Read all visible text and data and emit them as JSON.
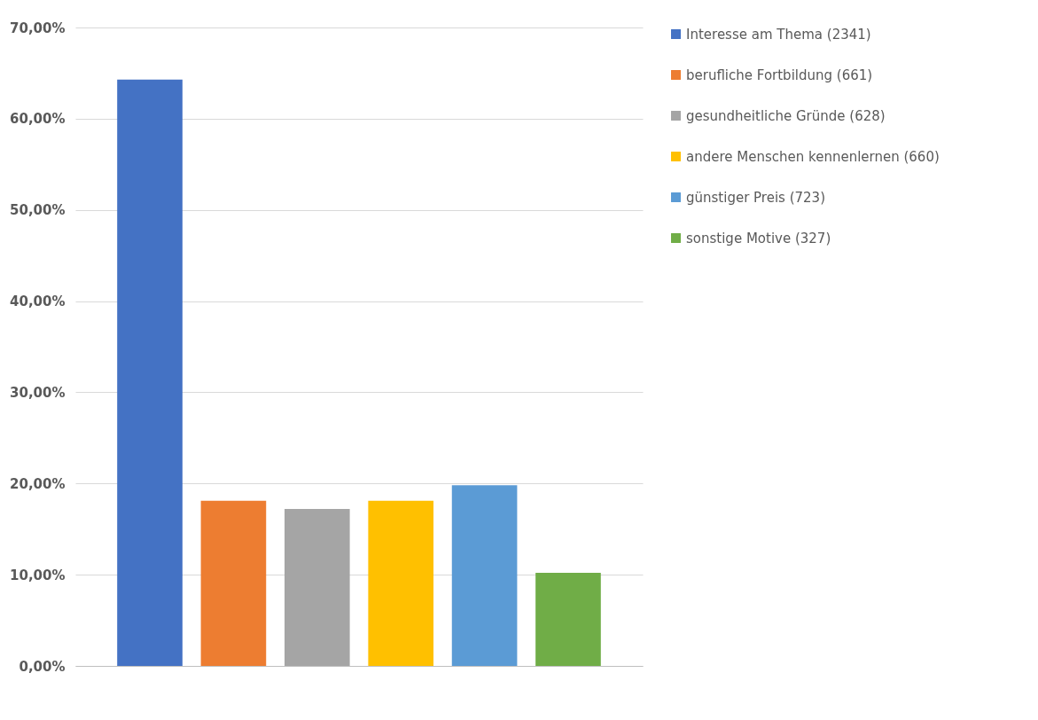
{
  "chart_data": {
    "type": "bar",
    "categories": [
      null,
      null,
      null,
      null,
      null,
      null
    ],
    "series": [
      {
        "name": "Interesse am Thema (2341)",
        "color": "#4472c4",
        "values": [
          64.3,
          null,
          null,
          null,
          null,
          null
        ]
      },
      {
        "name": "berufliche Fortbildung (661)",
        "color": "#ed7d31",
        "values": [
          null,
          18.1,
          null,
          null,
          null,
          null
        ]
      },
      {
        "name": "gesundheitliche Gründe (628)",
        "color": "#a5a5a5",
        "values": [
          null,
          null,
          17.2,
          null,
          null,
          null
        ]
      },
      {
        "name": "andere Menschen kennenlernen (660)",
        "color": "#ffc000",
        "values": [
          null,
          null,
          null,
          18.1,
          null,
          null
        ]
      },
      {
        "name": "günstiger Preis (723)",
        "color": "#5b9bd5",
        "values": [
          null,
          null,
          null,
          null,
          19.8,
          null
        ]
      },
      {
        "name": "sonstige Motive (327)",
        "color": "#70ad47",
        "values": [
          null,
          null,
          null,
          null,
          null,
          10.2
        ]
      }
    ],
    "ylim": [
      0,
      70
    ],
    "yticks": [
      {
        "value": 0,
        "label": "0,00%"
      },
      {
        "value": 10,
        "label": "10,00%"
      },
      {
        "value": 20,
        "label": "20,00%"
      },
      {
        "value": 30,
        "label": "30,00%"
      },
      {
        "value": 40,
        "label": "40,00%"
      },
      {
        "value": 50,
        "label": "50,00%"
      },
      {
        "value": 60,
        "label": "60,00%"
      },
      {
        "value": 70,
        "label": "70,00%"
      }
    ],
    "grid": "y",
    "legend": "right"
  }
}
